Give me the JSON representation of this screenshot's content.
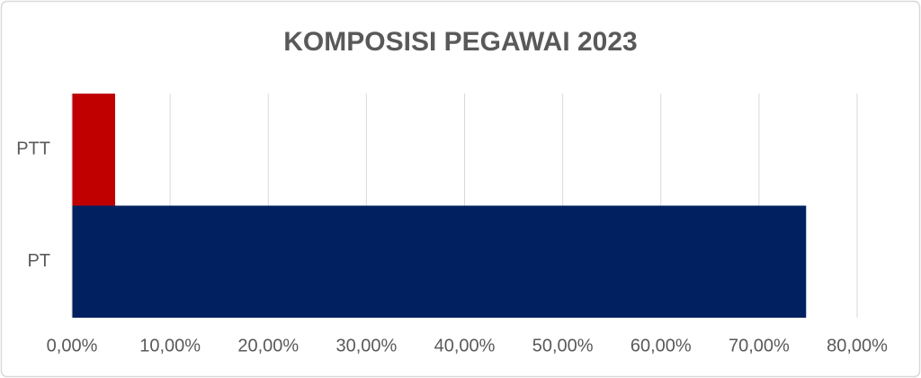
{
  "chart_data": {
    "type": "bar",
    "orientation": "horizontal",
    "title": "KOMPOSISI PEGAWAI 2023",
    "categories": [
      "PT",
      "PTT"
    ],
    "values": [
      74.8,
      4.4
    ],
    "colors": [
      "#002060",
      "#c00000"
    ],
    "xlim": [
      0,
      80
    ],
    "xticks": [
      {
        "value": 0,
        "label": "0,00%"
      },
      {
        "value": 10,
        "label": "10,00%"
      },
      {
        "value": 20,
        "label": "20,00%"
      },
      {
        "value": 30,
        "label": "30,00%"
      },
      {
        "value": 40,
        "label": "40,00%"
      },
      {
        "value": 50,
        "label": "50,00%"
      },
      {
        "value": 60,
        "label": "60,00%"
      },
      {
        "value": 70,
        "label": "70,00%"
      },
      {
        "value": 80,
        "label": "80,00%"
      }
    ],
    "grid": true
  }
}
